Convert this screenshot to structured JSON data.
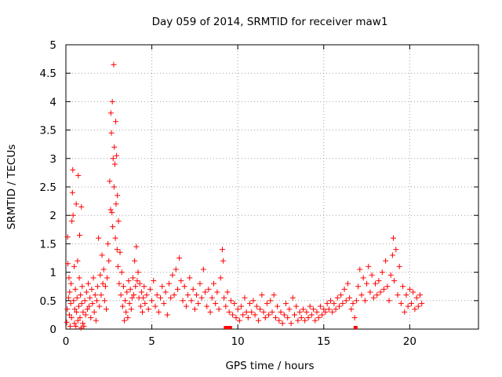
{
  "chart_data": {
    "type": "scatter",
    "title": "Day 059 of 2014, SRMTID for receiver maw1",
    "xlabel": "GPS time / hours",
    "ylabel": "SRMTID / TECUs",
    "xlim": [
      0,
      24
    ],
    "ylim": [
      0,
      5
    ],
    "xticks": [
      0,
      5,
      10,
      15,
      20
    ],
    "yticks": [
      0,
      0.5,
      1,
      1.5,
      2,
      2.5,
      3,
      3.5,
      4,
      4.5,
      5
    ],
    "xtick_labels": [
      "0",
      "5",
      "10",
      "15",
      "20"
    ],
    "ytick_labels": [
      "0",
      "0.5",
      "1",
      "1.5",
      "2",
      "2.5",
      "3",
      "3.5",
      "4",
      "4.5",
      "5"
    ],
    "grid": true,
    "marker": "+",
    "color": "#ff0000",
    "series": [
      {
        "points": [
          [
            0.05,
            0.12
          ],
          [
            0.08,
            0.35
          ],
          [
            0.1,
            1.62
          ],
          [
            0.12,
            1.15
          ],
          [
            0.15,
            0.55
          ],
          [
            0.18,
            0.9
          ],
          [
            0.2,
            0.25
          ],
          [
            0.22,
            0.65
          ],
          [
            0.25,
            0.05
          ],
          [
            0.28,
            0.45
          ],
          [
            0.3,
            0.8
          ],
          [
            0.33,
            0.2
          ],
          [
            0.35,
            1.9
          ],
          [
            0.38,
            2.4
          ],
          [
            0.4,
            2.8
          ],
          [
            0.42,
            2.0
          ],
          [
            0.45,
            0.5
          ],
          [
            0.48,
            1.1
          ],
          [
            0.5,
            0.1
          ],
          [
            0.52,
            0.35
          ],
          [
            0.55,
            0.7
          ],
          [
            0.58,
            0.05
          ],
          [
            0.6,
            2.2
          ],
          [
            0.62,
            0.3
          ],
          [
            0.65,
            0.55
          ],
          [
            0.68,
            1.2
          ],
          [
            0.7,
            0.15
          ],
          [
            0.72,
            2.7
          ],
          [
            0.75,
            0.4
          ],
          [
            0.78,
            0.9
          ],
          [
            0.8,
            1.65
          ],
          [
            0.82,
            0.2
          ],
          [
            0.85,
            0.6
          ],
          [
            0.88,
            0.02
          ],
          [
            0.9,
            2.15
          ],
          [
            0.92,
            0.45
          ],
          [
            0.95,
            0.75
          ],
          [
            0.98,
            0.1
          ],
          [
            1.0,
            0.3
          ],
          [
            1.05,
            0.05
          ],
          [
            1.1,
            0.5
          ],
          [
            1.15,
            0.25
          ],
          [
            1.2,
            0.65
          ],
          [
            1.25,
            0.35
          ],
          [
            1.3,
            0.8
          ],
          [
            1.35,
            0.4
          ],
          [
            1.4,
            0.55
          ],
          [
            1.45,
            0.2
          ],
          [
            1.5,
            0.7
          ],
          [
            1.55,
            0.45
          ],
          [
            1.6,
            0.9
          ],
          [
            1.65,
            0.3
          ],
          [
            1.7,
            0.6
          ],
          [
            1.75,
            0.15
          ],
          [
            1.8,
            0.5
          ],
          [
            1.85,
            0.75
          ],
          [
            1.9,
            1.6
          ],
          [
            1.95,
            0.4
          ],
          [
            2.0,
            0.95
          ],
          [
            2.05,
            0.6
          ],
          [
            2.1,
            1.3
          ],
          [
            2.15,
            0.8
          ],
          [
            2.2,
            1.05
          ],
          [
            2.25,
            0.5
          ],
          [
            2.3,
            0.75
          ],
          [
            2.35,
            0.35
          ],
          [
            2.4,
            0.9
          ],
          [
            2.45,
            1.5
          ],
          [
            2.5,
            1.2
          ],
          [
            2.55,
            2.6
          ],
          [
            2.6,
            2.1
          ],
          [
            2.62,
            3.8
          ],
          [
            2.65,
            3.45
          ],
          [
            2.68,
            2.05
          ],
          [
            2.7,
            4.0
          ],
          [
            2.72,
            1.8
          ],
          [
            2.75,
            3.0
          ],
          [
            2.78,
            4.65
          ],
          [
            2.8,
            2.5
          ],
          [
            2.82,
            3.2
          ],
          [
            2.85,
            2.9
          ],
          [
            2.88,
            1.6
          ],
          [
            2.9,
            3.65
          ],
          [
            2.92,
            2.2
          ],
          [
            2.95,
            3.05
          ],
          [
            2.98,
            1.4
          ],
          [
            3.0,
            2.35
          ],
          [
            3.03,
            1.1
          ],
          [
            3.06,
            1.9
          ],
          [
            3.1,
            0.8
          ],
          [
            3.15,
            1.35
          ],
          [
            3.2,
            0.6
          ],
          [
            3.25,
            1.0
          ],
          [
            3.3,
            0.4
          ],
          [
            3.35,
            0.75
          ],
          [
            3.4,
            0.15
          ],
          [
            3.45,
            0.5
          ],
          [
            3.5,
            0.3
          ],
          [
            3.55,
            0.65
          ],
          [
            3.6,
            0.2
          ],
          [
            3.65,
            0.85
          ],
          [
            3.7,
            0.45
          ],
          [
            3.75,
            0.7
          ],
          [
            3.8,
            0.35
          ],
          [
            3.85,
            0.55
          ],
          [
            3.9,
            0.9
          ],
          [
            3.95,
            0.6
          ],
          [
            4.0,
            1.2
          ],
          [
            4.05,
            0.75
          ],
          [
            4.1,
            1.45
          ],
          [
            4.15,
            0.85
          ],
          [
            4.2,
            1.0
          ],
          [
            4.25,
            0.55
          ],
          [
            4.3,
            0.8
          ],
          [
            4.35,
            0.4
          ],
          [
            4.4,
            0.65
          ],
          [
            4.45,
            0.3
          ],
          [
            4.5,
            0.55
          ],
          [
            4.55,
            0.75
          ],
          [
            4.6,
            0.45
          ],
          [
            4.7,
            0.6
          ],
          [
            4.8,
            0.35
          ],
          [
            4.9,
            0.7
          ],
          [
            5.0,
            0.5
          ],
          [
            5.1,
            0.85
          ],
          [
            5.2,
            0.4
          ],
          [
            5.3,
            0.6
          ],
          [
            5.4,
            0.3
          ],
          [
            5.5,
            0.55
          ],
          [
            5.6,
            0.75
          ],
          [
            5.7,
            0.45
          ],
          [
            5.8,
            0.65
          ],
          [
            5.9,
            0.25
          ],
          [
            6.0,
            0.8
          ],
          [
            6.1,
            0.55
          ],
          [
            6.2,
            0.95
          ],
          [
            6.3,
            0.6
          ],
          [
            6.4,
            1.05
          ],
          [
            6.5,
            0.7
          ],
          [
            6.6,
            1.25
          ],
          [
            6.7,
            0.85
          ],
          [
            6.8,
            0.5
          ],
          [
            6.9,
            0.75
          ],
          [
            7.0,
            0.4
          ],
          [
            7.1,
            0.6
          ],
          [
            7.2,
            0.9
          ],
          [
            7.3,
            0.5
          ],
          [
            7.4,
            0.7
          ],
          [
            7.5,
            0.35
          ],
          [
            7.6,
            0.6
          ],
          [
            7.7,
            0.45
          ],
          [
            7.8,
            0.8
          ],
          [
            7.9,
            0.55
          ],
          [
            8.0,
            1.05
          ],
          [
            8.1,
            0.65
          ],
          [
            8.2,
            0.4
          ],
          [
            8.3,
            0.7
          ],
          [
            8.4,
            0.3
          ],
          [
            8.5,
            0.55
          ],
          [
            8.6,
            0.8
          ],
          [
            8.7,
            0.45
          ],
          [
            8.8,
            0.65
          ],
          [
            8.9,
            0.35
          ],
          [
            9.0,
            0.9
          ],
          [
            9.1,
            1.4
          ],
          [
            9.15,
            1.2
          ],
          [
            9.2,
            0.55
          ],
          [
            9.3,
            0.4
          ],
          [
            9.4,
            0.65
          ],
          [
            9.5,
            0.3
          ],
          [
            9.6,
            0.5
          ],
          [
            9.7,
            0.25
          ],
          [
            9.8,
            0.45
          ],
          [
            9.9,
            0.2
          ],
          [
            10.0,
            0.35
          ],
          [
            10.1,
            0.15
          ],
          [
            10.2,
            0.4
          ],
          [
            10.3,
            0.25
          ],
          [
            10.4,
            0.55
          ],
          [
            10.5,
            0.3
          ],
          [
            10.6,
            0.2
          ],
          [
            10.7,
            0.45
          ],
          [
            10.8,
            0.3
          ],
          [
            10.9,
            0.5
          ],
          [
            11.0,
            0.25
          ],
          [
            11.1,
            0.4
          ],
          [
            11.2,
            0.15
          ],
          [
            11.3,
            0.35
          ],
          [
            11.4,
            0.6
          ],
          [
            11.5,
            0.3
          ],
          [
            11.6,
            0.2
          ],
          [
            11.7,
            0.45
          ],
          [
            11.8,
            0.25
          ],
          [
            11.9,
            0.5
          ],
          [
            12.0,
            0.3
          ],
          [
            12.1,
            0.6
          ],
          [
            12.2,
            0.2
          ],
          [
            12.3,
            0.4
          ],
          [
            12.4,
            0.15
          ],
          [
            12.5,
            0.3
          ],
          [
            12.6,
            0.1
          ],
          [
            12.7,
            0.25
          ],
          [
            12.8,
            0.45
          ],
          [
            12.9,
            0.2
          ],
          [
            13.0,
            0.35
          ],
          [
            13.1,
            0.1
          ],
          [
            13.2,
            0.55
          ],
          [
            13.3,
            0.25
          ],
          [
            13.4,
            0.4
          ],
          [
            13.5,
            0.15
          ],
          [
            13.6,
            0.3
          ],
          [
            13.7,
            0.2
          ],
          [
            13.8,
            0.35
          ],
          [
            13.9,
            0.15
          ],
          [
            14.0,
            0.3
          ],
          [
            14.1,
            0.2
          ],
          [
            14.2,
            0.4
          ],
          [
            14.3,
            0.25
          ],
          [
            14.4,
            0.35
          ],
          [
            14.5,
            0.15
          ],
          [
            14.6,
            0.3
          ],
          [
            14.7,
            0.2
          ],
          [
            14.8,
            0.4
          ],
          [
            14.9,
            0.25
          ],
          [
            15.0,
            0.35
          ],
          [
            15.1,
            0.3
          ],
          [
            15.2,
            0.45
          ],
          [
            15.3,
            0.35
          ],
          [
            15.4,
            0.5
          ],
          [
            15.5,
            0.3
          ],
          [
            15.6,
            0.45
          ],
          [
            15.7,
            0.35
          ],
          [
            15.8,
            0.55
          ],
          [
            15.9,
            0.4
          ],
          [
            16.0,
            0.6
          ],
          [
            16.1,
            0.45
          ],
          [
            16.2,
            0.7
          ],
          [
            16.3,
            0.5
          ],
          [
            16.4,
            0.8
          ],
          [
            16.5,
            0.55
          ],
          [
            16.6,
            0.35
          ],
          [
            16.7,
            0.45
          ],
          [
            16.8,
            0.2
          ],
          [
            16.9,
            0.5
          ],
          [
            17.0,
            0.75
          ],
          [
            17.1,
            1.05
          ],
          [
            17.2,
            0.6
          ],
          [
            17.3,
            0.9
          ],
          [
            17.4,
            0.5
          ],
          [
            17.5,
            0.8
          ],
          [
            17.6,
            1.1
          ],
          [
            17.7,
            0.65
          ],
          [
            17.8,
            0.95
          ],
          [
            17.9,
            0.55
          ],
          [
            18.0,
            0.8
          ],
          [
            18.1,
            0.6
          ],
          [
            18.2,
            0.85
          ],
          [
            18.3,
            0.65
          ],
          [
            18.4,
            1.0
          ],
          [
            18.5,
            0.7
          ],
          [
            18.6,
            1.2
          ],
          [
            18.7,
            0.75
          ],
          [
            18.8,
            0.5
          ],
          [
            18.9,
            0.95
          ],
          [
            19.0,
            1.3
          ],
          [
            19.05,
            1.6
          ],
          [
            19.1,
            0.85
          ],
          [
            19.2,
            1.4
          ],
          [
            19.3,
            0.6
          ],
          [
            19.4,
            1.1
          ],
          [
            19.5,
            0.45
          ],
          [
            19.6,
            0.75
          ],
          [
            19.7,
            0.3
          ],
          [
            19.8,
            0.6
          ],
          [
            19.9,
            0.4
          ],
          [
            20.0,
            0.7
          ],
          [
            20.1,
            0.45
          ],
          [
            20.2,
            0.65
          ],
          [
            20.3,
            0.35
          ],
          [
            20.4,
            0.55
          ],
          [
            20.5,
            0.4
          ],
          [
            20.6,
            0.6
          ],
          [
            20.7,
            0.45
          ]
        ]
      }
    ],
    "zero_points": [
      9.3,
      9.35,
      9.42,
      9.47,
      9.55,
      16.85
    ]
  }
}
